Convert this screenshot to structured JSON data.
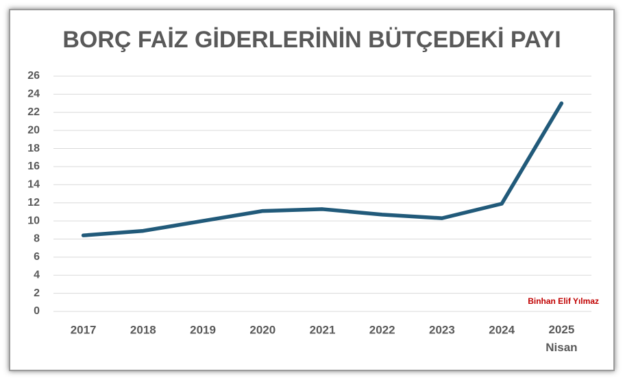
{
  "chart_data": {
    "type": "line",
    "title": "BORÇ FAİZ GİDERLERİNİN BÜTÇEDEKİ PAYI",
    "annotation": "Binhan Elif Yılmaz",
    "categories": [
      "2017",
      "2018",
      "2019",
      "2020",
      "2021",
      "2022",
      "2023",
      "2024",
      "2025\nNisan"
    ],
    "series": [
      {
        "name": "Borç faiz giderlerinin bütçedeki payı",
        "color": "#215a7a",
        "values": [
          8.4,
          8.9,
          10.0,
          11.1,
          11.3,
          10.7,
          10.3,
          11.9,
          23.0
        ]
      }
    ],
    "ylim": [
      0,
      26
    ],
    "yticks": [
      0,
      2,
      4,
      6,
      8,
      10,
      12,
      14,
      16,
      18,
      20,
      22,
      24,
      26
    ],
    "grid": true
  }
}
